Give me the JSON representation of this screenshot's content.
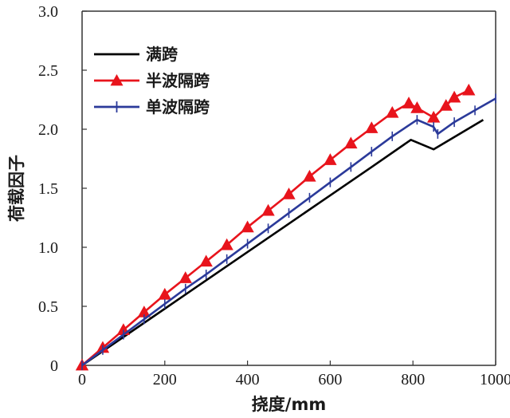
{
  "chart_data": {
    "type": "line",
    "title": "",
    "xlabel": "挠度/mm",
    "ylabel": "荷载因子",
    "xlim": [
      0,
      1000
    ],
    "ylim": [
      0,
      3.0
    ],
    "xticks": [
      0,
      200,
      400,
      600,
      800,
      1000
    ],
    "yticks": [
      0,
      0.5,
      1.0,
      1.5,
      2.0,
      2.5,
      3.0
    ],
    "xtick_labels": [
      "0",
      "200",
      "400",
      "600",
      "800",
      "1000"
    ],
    "ytick_labels": [
      "0",
      "0.5",
      "1.0",
      "1.5",
      "2.0",
      "2.5",
      "3.0"
    ],
    "grid": false,
    "legend_position": "top-left",
    "series": [
      {
        "name": "满跨",
        "color": "#000000",
        "marker": "none",
        "x": [
          0,
          100,
          200,
          300,
          400,
          500,
          600,
          700,
          795,
          850,
          970
        ],
        "y": [
          0,
          0.24,
          0.48,
          0.72,
          0.96,
          1.2,
          1.44,
          1.68,
          1.91,
          1.83,
          2.08
        ]
      },
      {
        "name": "半波隔跨",
        "color": "#e8141c",
        "marker": "triangle",
        "x": [
          0,
          50,
          100,
          150,
          200,
          250,
          300,
          350,
          400,
          450,
          500,
          550,
          600,
          650,
          700,
          750,
          790,
          810,
          850,
          880,
          900,
          935
        ],
        "y": [
          0,
          0.15,
          0.3,
          0.45,
          0.6,
          0.74,
          0.88,
          1.02,
          1.17,
          1.31,
          1.45,
          1.6,
          1.74,
          1.88,
          2.01,
          2.14,
          2.22,
          2.18,
          2.1,
          2.2,
          2.27,
          2.33
        ]
      },
      {
        "name": "单波隔跨",
        "color": "#2b3a9a",
        "marker": "plus",
        "x": [
          0,
          50,
          100,
          150,
          200,
          250,
          300,
          350,
          400,
          450,
          500,
          550,
          600,
          650,
          700,
          750,
          810,
          850,
          860,
          900,
          950,
          1000
        ],
        "y": [
          0,
          0.13,
          0.26,
          0.39,
          0.52,
          0.65,
          0.77,
          0.9,
          1.03,
          1.16,
          1.29,
          1.42,
          1.55,
          1.68,
          1.81,
          1.94,
          2.08,
          2.02,
          1.96,
          2.06,
          2.16,
          2.26
        ]
      }
    ]
  }
}
